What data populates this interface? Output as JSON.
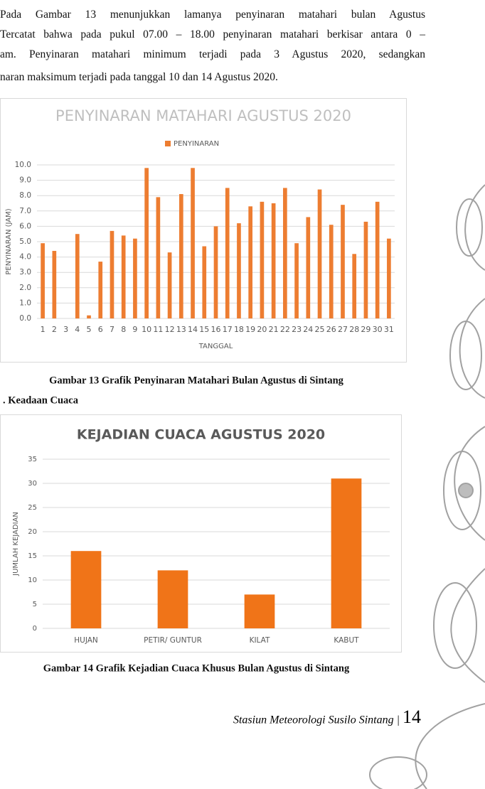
{
  "paragraph": [
    "Pada Gambar 13 menunjukkan lamanya penyinaran matahari bulan Agustus",
    "Tercatat bahwa pada pukul 07.00 – 18.00 penyinaran matahari berkisar antara 0 –",
    "am. Penyinaran matahari minimum terjadi pada 3 Agustus 2020, sedangkan",
    "naran maksimum terjadi pada tanggal 10 dan 14 Agustus 2020."
  ],
  "captions": [
    "Gambar 13 Grafik Penyinaran Matahari Bulan Agustus di Sintang",
    "Gambar 14 Grafik Kejadian Cuaca Khusus Bulan Agustus di Sintang"
  ],
  "section_heading": ".  Keadaan Cuaca",
  "footer": {
    "text": "Stasiun Meteorologi Susilo Sintang |",
    "page": "14"
  },
  "chart_data": [
    {
      "type": "bar",
      "title": "PENYINARAN MATAHARI AGUSTUS 2020",
      "x_label": "TANGGAL",
      "y_label": "PENYINARAN (JAM)",
      "categories": [
        "1",
        "2",
        "3",
        "4",
        "5",
        "6",
        "7",
        "8",
        "9",
        "10",
        "11",
        "12",
        "13",
        "14",
        "15",
        "16",
        "17",
        "18",
        "19",
        "20",
        "21",
        "22",
        "23",
        "24",
        "25",
        "26",
        "27",
        "28",
        "29",
        "30",
        "31"
      ],
      "series": [
        {
          "name": "PENYINARAN",
          "color": "#ed7d31",
          "values": [
            4.9,
            4.4,
            0,
            5.5,
            0.2,
            3.7,
            5.7,
            5.4,
            5.2,
            9.8,
            7.9,
            4.3,
            8.1,
            9.8,
            4.7,
            6.0,
            8.5,
            6.2,
            7.3,
            7.6,
            7.5,
            8.5,
            4.9,
            6.6,
            8.4,
            6.1,
            7.4,
            4.2,
            6.3,
            7.6,
            5.2
          ]
        }
      ],
      "ylim": [
        0,
        10
      ],
      "yticks": [
        {
          "value": 0,
          "label": "0.0"
        },
        {
          "value": 1,
          "label": "1.0"
        },
        {
          "value": 2,
          "label": "2.0"
        },
        {
          "value": 3,
          "label": "3.0"
        },
        {
          "value": 4,
          "label": "4.0"
        },
        {
          "value": 5,
          "label": "5.0"
        },
        {
          "value": 6,
          "label": "6.0"
        },
        {
          "value": 7,
          "label": "7.0"
        },
        {
          "value": 8,
          "label": "8.0"
        },
        {
          "value": 9,
          "label": "9.0"
        },
        {
          "value": 10,
          "label": "10.0"
        }
      ],
      "grid": true,
      "legend": "top"
    },
    {
      "type": "bar",
      "title": "KEJADIAN CUACA AGUSTUS 2020",
      "y_label": "JUMLAH KEJADIAN",
      "categories": [
        "HUJAN",
        "PETIR/ GUNTUR",
        "KILAT",
        "KABUT"
      ],
      "values": [
        16,
        12,
        7,
        31
      ],
      "color": "#f07418",
      "ylim": [
        0,
        35
      ],
      "yticks": [
        0,
        5,
        10,
        15,
        20,
        25,
        30,
        35
      ],
      "grid": true
    }
  ]
}
